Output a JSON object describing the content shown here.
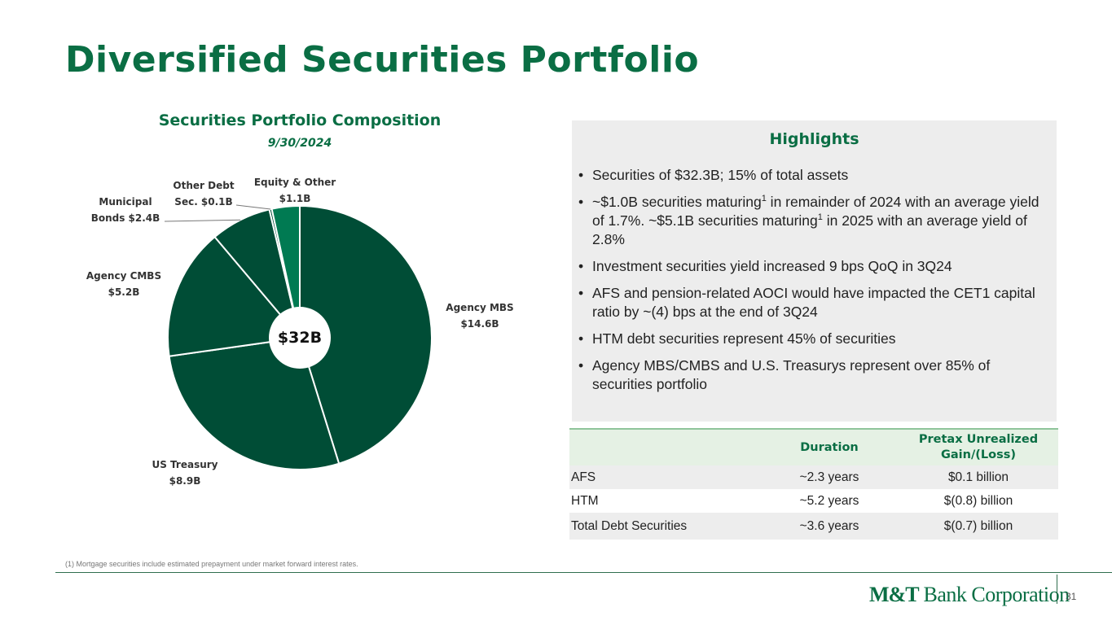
{
  "page": {
    "title": "Diversified Securities Portfolio",
    "footnote": "(1) Mortgage securities include estimated prepayment under market forward interest rates.",
    "page_number": "31"
  },
  "logo": {
    "bold": "M&T",
    "rest": " Bank Corporation"
  },
  "chart_data": {
    "type": "pie",
    "variant": "donut",
    "title": "Securities Portfolio Composition",
    "subtitle": "9/30/2024",
    "center_label": "$32B",
    "slices": [
      {
        "name": "Agency MBS",
        "value": 14.6,
        "label_line1": "Agency MBS",
        "label_line2": "$14.6B",
        "color": "#004d36"
      },
      {
        "name": "US Treasury",
        "value": 8.9,
        "label_line1": "US Treasury",
        "label_line2": "$8.9B",
        "color": "#004d36"
      },
      {
        "name": "Agency CMBS",
        "value": 5.2,
        "label_line1": "Agency CMBS",
        "label_line2": "$5.2B",
        "color": "#004d36"
      },
      {
        "name": "Municipal Bonds",
        "value": 2.4,
        "label_line1": "Municipal",
        "label_line2": "Bonds $2.4B",
        "color": "#004d36"
      },
      {
        "name": "Other Debt Sec.",
        "value": 0.1,
        "label_line1": "Other Debt",
        "label_line2": "Sec. $0.1B",
        "color": "#004d36"
      },
      {
        "name": "Equity & Other",
        "value": 1.1,
        "label_line1": "Equity & Other",
        "label_line2": "$1.1B",
        "color": "#007a52"
      }
    ]
  },
  "highlights": {
    "title": "Highlights",
    "items": [
      {
        "text": "Securities of $32.3B; 15% of total assets"
      },
      {
        "p1": "~$1.0B securities maturing",
        "s1": "1",
        "p2": " in remainder of 2024 with an average yield of 1.7%. ~$5.1B securities maturing",
        "s2": "1",
        "p3": " in 2025 with an average yield of 2.8%"
      },
      {
        "text": "Investment securities yield increased 9 bps QoQ in 3Q24"
      },
      {
        "text": "AFS and pension-related AOCI would have impacted the CET1 capital ratio by ~(4) bps at the end of 3Q24"
      },
      {
        "text": "HTM debt securities represent 45% of securities"
      },
      {
        "text": "Agency MBS/CMBS and U.S. Treasurys represent over 85% of securities portfolio"
      }
    ]
  },
  "table": {
    "headers": [
      "",
      "Duration",
      "Pretax Unrealized Gain/(Loss)"
    ],
    "rows": [
      [
        "AFS",
        "~2.3 years",
        "$0.1 billion"
      ],
      [
        "HTM",
        "~5.2 years",
        "$(0.8) billion"
      ],
      [
        "Total Debt Securities",
        "~3.6 years",
        "$(0.7) billion"
      ]
    ]
  }
}
